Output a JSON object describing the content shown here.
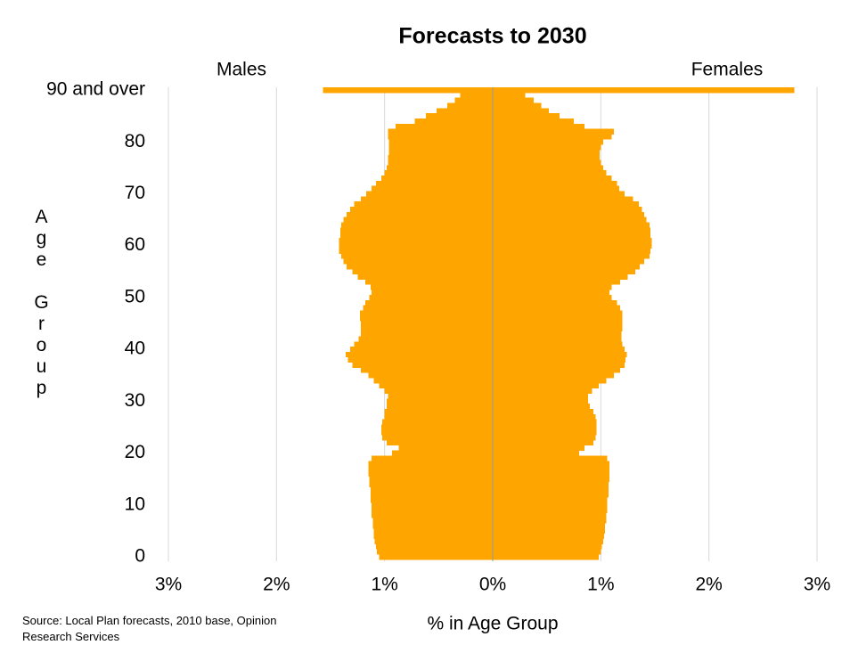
{
  "chart_data": {
    "type": "pyramid",
    "title": "Forecasts to 2030",
    "x_label": "% in Age Group",
    "y_label": "Age Group",
    "source": "Source: Local Plan forecasts, 2010 base, Opinion Research Services",
    "categories": [
      "0",
      null,
      null,
      null,
      null,
      null,
      null,
      null,
      null,
      null,
      "10",
      null,
      null,
      null,
      null,
      null,
      null,
      null,
      null,
      null,
      "20",
      null,
      null,
      null,
      null,
      null,
      null,
      null,
      null,
      null,
      "30",
      null,
      null,
      null,
      null,
      null,
      null,
      null,
      null,
      null,
      "40",
      null,
      null,
      null,
      null,
      null,
      null,
      null,
      null,
      null,
      "50",
      null,
      null,
      null,
      null,
      null,
      null,
      null,
      null,
      null,
      "60",
      null,
      null,
      null,
      null,
      null,
      null,
      null,
      null,
      null,
      "70",
      null,
      null,
      null,
      null,
      null,
      null,
      null,
      null,
      null,
      "80",
      null,
      null,
      null,
      null,
      null,
      null,
      null,
      null,
      null,
      "90 and over"
    ],
    "series": [
      {
        "name": "Males",
        "color": "#ffa500",
        "values": [
          -1.05,
          -1.07,
          -1.08,
          -1.09,
          -1.1,
          -1.1,
          -1.11,
          -1.11,
          -1.12,
          -1.12,
          -1.12,
          -1.13,
          -1.13,
          -1.13,
          -1.14,
          -1.14,
          -1.15,
          -1.15,
          -1.15,
          -1.12,
          -0.93,
          -0.87,
          -0.98,
          -1.02,
          -1.03,
          -1.03,
          -1.02,
          -1.0,
          -1.0,
          -0.98,
          -0.98,
          -0.97,
          -1.0,
          -1.05,
          -1.1,
          -1.15,
          -1.22,
          -1.3,
          -1.34,
          -1.36,
          -1.32,
          -1.28,
          -1.24,
          -1.22,
          -1.22,
          -1.22,
          -1.23,
          -1.23,
          -1.2,
          -1.18,
          -1.14,
          -1.12,
          -1.13,
          -1.18,
          -1.25,
          -1.3,
          -1.35,
          -1.38,
          -1.4,
          -1.42,
          -1.42,
          -1.42,
          -1.41,
          -1.41,
          -1.4,
          -1.38,
          -1.35,
          -1.32,
          -1.28,
          -1.22,
          -1.17,
          -1.12,
          -1.08,
          -1.03,
          -1.0,
          -0.98,
          -0.97,
          -0.97,
          -0.96,
          -0.96,
          -0.96,
          -0.97,
          -0.97,
          -0.9,
          -0.72,
          -0.62,
          -0.52,
          -0.42,
          -0.35,
          -0.3,
          -1.57
        ]
      },
      {
        "name": "Females",
        "color": "#ffa500",
        "values": [
          0.98,
          1.0,
          1.01,
          1.02,
          1.03,
          1.04,
          1.04,
          1.05,
          1.05,
          1.06,
          1.06,
          1.06,
          1.07,
          1.07,
          1.07,
          1.08,
          1.08,
          1.08,
          1.08,
          1.06,
          0.8,
          0.85,
          0.93,
          0.95,
          0.96,
          0.96,
          0.96,
          0.95,
          0.93,
          0.9,
          0.88,
          0.88,
          0.92,
          0.98,
          1.05,
          1.12,
          1.18,
          1.22,
          1.23,
          1.24,
          1.22,
          1.2,
          1.19,
          1.19,
          1.2,
          1.2,
          1.2,
          1.2,
          1.18,
          1.15,
          1.1,
          1.08,
          1.1,
          1.18,
          1.25,
          1.32,
          1.36,
          1.4,
          1.45,
          1.46,
          1.47,
          1.47,
          1.46,
          1.46,
          1.45,
          1.42,
          1.4,
          1.38,
          1.35,
          1.3,
          1.22,
          1.17,
          1.15,
          1.1,
          1.05,
          1.02,
          1.0,
          0.99,
          0.99,
          1.0,
          1.02,
          1.1,
          1.12,
          0.85,
          0.75,
          0.62,
          0.52,
          0.45,
          0.38,
          0.3,
          2.79
        ]
      }
    ],
    "xlim": [
      -3,
      3
    ],
    "xticks": [
      {
        "value": -3,
        "label": "3%"
      },
      {
        "value": -2,
        "label": "2%"
      },
      {
        "value": -1,
        "label": "1%"
      },
      {
        "value": 0,
        "label": "0%"
      },
      {
        "value": 1,
        "label": "1%"
      },
      {
        "value": 2,
        "label": "2%"
      },
      {
        "value": 3,
        "label": "3%"
      }
    ],
    "grid": true
  }
}
